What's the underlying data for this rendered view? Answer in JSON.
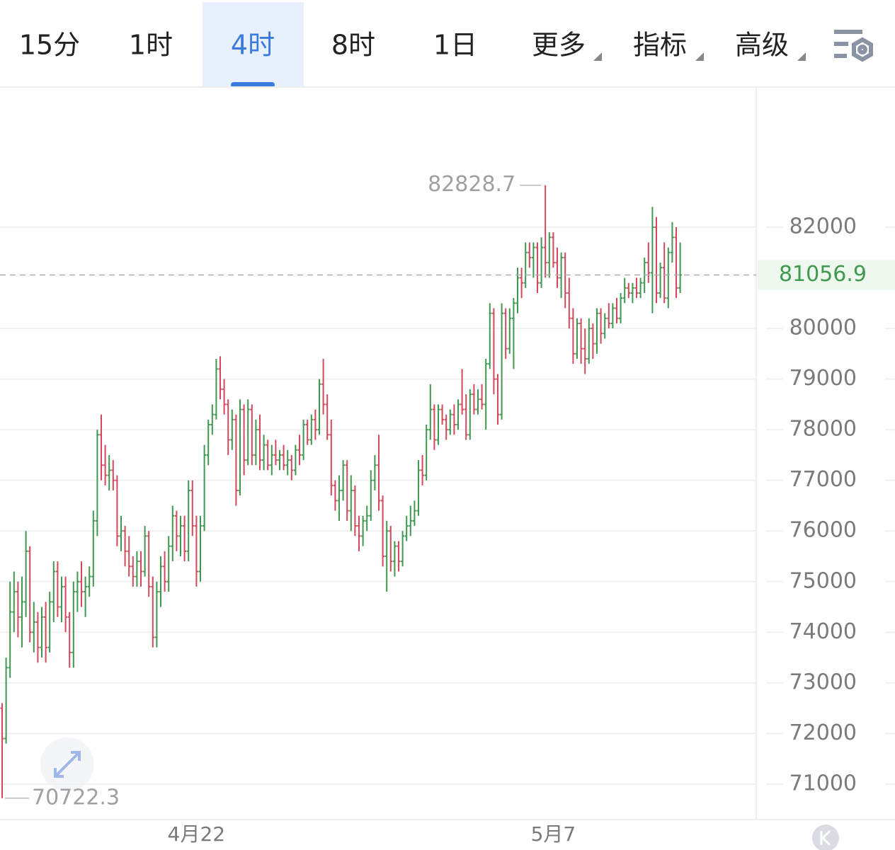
{
  "toolbar": {
    "tabs": [
      "15分",
      "1时",
      "4时",
      "8时",
      "1日",
      "更多",
      "指标",
      "高级"
    ],
    "active": 2
  },
  "chart_data": {
    "type": "ohlc",
    "categories": [
      null,
      null,
      null,
      null,
      null,
      null,
      null,
      null,
      null,
      null,
      null,
      null,
      null,
      null,
      null,
      null,
      null,
      null,
      null,
      null,
      null,
      null,
      null,
      null,
      null,
      null,
      null,
      null,
      null,
      null,
      null,
      null,
      null,
      null,
      null,
      null,
      null,
      null,
      null,
      null,
      null,
      null,
      null,
      null,
      null,
      null,
      null,
      null,
      null,
      "4月22",
      null,
      null,
      null,
      null,
      null,
      null,
      null,
      null,
      null,
      null,
      null,
      null,
      null,
      null,
      null,
      null,
      null,
      null,
      null,
      null,
      null,
      null,
      null,
      null,
      null,
      null,
      null,
      null,
      null,
      null,
      null,
      null,
      null,
      null,
      null,
      null,
      null,
      null,
      null,
      null,
      null,
      null,
      null,
      null,
      null,
      null,
      null,
      null,
      null,
      null,
      null,
      null,
      null,
      null,
      null,
      null,
      null,
      null,
      null,
      null,
      null,
      null,
      null,
      null,
      null,
      null,
      null,
      null,
      null,
      null,
      null,
      null,
      null,
      null,
      null,
      null,
      null,
      null,
      null,
      null,
      null,
      null,
      null,
      null,
      null,
      null,
      null,
      null,
      null,
      "5月7",
      null,
      null,
      null,
      null,
      null,
      null,
      null,
      null,
      null,
      null,
      null,
      null,
      null,
      null,
      null,
      null,
      null,
      null,
      null,
      null,
      null,
      null,
      null,
      null,
      null,
      null,
      null,
      null,
      null,
      null,
      null,
      null
    ],
    "ohlc": [
      [
        72500,
        72600,
        70722.3,
        71900
      ],
      [
        71900,
        73500,
        71800,
        73300
      ],
      [
        73300,
        75000,
        73100,
        74400
      ],
      [
        74400,
        75200,
        74000,
        74800
      ],
      [
        74800,
        75000,
        73900,
        74300
      ],
      [
        74300,
        75100,
        73700,
        74600
      ],
      [
        74600,
        76000,
        74300,
        75600
      ],
      [
        75600,
        75700,
        73800,
        74000
      ],
      [
        74000,
        74600,
        73600,
        74200
      ],
      [
        74200,
        74400,
        73400,
        73700
      ],
      [
        73700,
        74500,
        73500,
        74300
      ],
      [
        74300,
        74600,
        73400,
        73700
      ],
      [
        73700,
        74800,
        73600,
        74600
      ],
      [
        74600,
        75400,
        74200,
        75200
      ],
      [
        75200,
        75400,
        74300,
        74500
      ],
      [
        74500,
        75100,
        74200,
        74900
      ],
      [
        74900,
        75100,
        74000,
        74300
      ],
      [
        74300,
        74400,
        73300,
        73600
      ],
      [
        73600,
        75000,
        73300,
        74800
      ],
      [
        74800,
        75200,
        74400,
        75000
      ],
      [
        75000,
        75400,
        74500,
        74800
      ],
      [
        74800,
        75100,
        74300,
        74900
      ],
      [
        74900,
        75300,
        74700,
        75100
      ],
      [
        75100,
        76400,
        74900,
        76200
      ],
      [
        76200,
        78000,
        75900,
        77900
      ],
      [
        77900,
        78300,
        77000,
        77300
      ],
      [
        77300,
        77700,
        76900,
        77100
      ],
      [
        77100,
        77500,
        76800,
        77200
      ],
      [
        77200,
        77400,
        76800,
        77000
      ],
      [
        77000,
        77100,
        75700,
        75900
      ],
      [
        75900,
        76300,
        75600,
        76000
      ],
      [
        76000,
        76100,
        75300,
        75600
      ],
      [
        75600,
        75900,
        75100,
        75300
      ],
      [
        75300,
        75500,
        74900,
        75100
      ],
      [
        75100,
        75600,
        74900,
        75400
      ],
      [
        75400,
        75600,
        74900,
        75200
      ],
      [
        75200,
        76100,
        75100,
        75900
      ],
      [
        75900,
        76000,
        74700,
        74900
      ],
      [
        74900,
        75100,
        73700,
        73900
      ],
      [
        73900,
        75000,
        73700,
        74800
      ],
      [
        74800,
        75500,
        74500,
        75300
      ],
      [
        75300,
        75600,
        74800,
        75000
      ],
      [
        75000,
        75900,
        74800,
        75700
      ],
      [
        75700,
        76500,
        75400,
        76300
      ],
      [
        76300,
        76400,
        75600,
        75900
      ],
      [
        75900,
        76300,
        75500,
        76100
      ],
      [
        76100,
        76300,
        75400,
        75600
      ],
      [
        75600,
        77000,
        75400,
        76800
      ],
      [
        76800,
        77000,
        75900,
        76100
      ],
      [
        76100,
        76300,
        74900,
        75200
      ],
      [
        75200,
        76300,
        75000,
        76100
      ],
      [
        76100,
        77700,
        76000,
        77500
      ],
      [
        77500,
        78200,
        77300,
        78100
      ],
      [
        78100,
        78500,
        77900,
        78300
      ],
      [
        78300,
        79400,
        78200,
        79200
      ],
      [
        79200,
        79450,
        78600,
        78800
      ],
      [
        78800,
        79000,
        78300,
        78500
      ],
      [
        78500,
        78600,
        77500,
        77800
      ],
      [
        77800,
        78400,
        77600,
        78200
      ],
      [
        78200,
        78300,
        76500,
        76800
      ],
      [
        76800,
        78600,
        76700,
        78400
      ],
      [
        78400,
        78500,
        77100,
        77400
      ],
      [
        77400,
        78600,
        77300,
        78400
      ],
      [
        78400,
        78500,
        77300,
        77500
      ],
      [
        77500,
        78200,
        77300,
        78000
      ],
      [
        78000,
        78300,
        77200,
        77400
      ],
      [
        77400,
        77900,
        77200,
        77700
      ],
      [
        77700,
        77800,
        77200,
        77300
      ],
      [
        77300,
        77700,
        77100,
        77500
      ],
      [
        77500,
        77800,
        77300,
        77400
      ],
      [
        77400,
        77600,
        77200,
        77500
      ],
      [
        77500,
        77700,
        77200,
        77300
      ],
      [
        77300,
        77600,
        77100,
        77400
      ],
      [
        77400,
        77500,
        77000,
        77200
      ],
      [
        77200,
        77700,
        77100,
        77600
      ],
      [
        77600,
        77900,
        77300,
        77500
      ],
      [
        77500,
        78200,
        77400,
        78100
      ],
      [
        78100,
        78200,
        77700,
        77800
      ],
      [
        77800,
        78300,
        77700,
        78200
      ],
      [
        78200,
        78400,
        77800,
        78000
      ],
      [
        78000,
        79000,
        77900,
        78900
      ],
      [
        78900,
        79400,
        78300,
        78500
      ],
      [
        78500,
        78700,
        77800,
        77900
      ],
      [
        77900,
        78200,
        76700,
        76900
      ],
      [
        76900,
        77000,
        76400,
        76600
      ],
      [
        76600,
        77100,
        76200,
        76800
      ],
      [
        76800,
        77400,
        76600,
        77300
      ],
      [
        77300,
        77400,
        76200,
        76400
      ],
      [
        76400,
        77100,
        76000,
        76800
      ],
      [
        76800,
        76900,
        75900,
        76100
      ],
      [
        76100,
        76300,
        75600,
        75900
      ],
      [
        75900,
        76300,
        75700,
        76200
      ],
      [
        76200,
        76500,
        76000,
        76300
      ],
      [
        76300,
        77200,
        76200,
        77000
      ],
      [
        77000,
        77500,
        76800,
        77300
      ],
      [
        77300,
        77900,
        76400,
        76600
      ],
      [
        76600,
        76700,
        75300,
        75500
      ],
      [
        75500,
        76200,
        74800,
        76000
      ],
      [
        76000,
        76100,
        75200,
        75400
      ],
      [
        75400,
        75800,
        75100,
        75700
      ],
      [
        75700,
        75800,
        75200,
        75400
      ],
      [
        75400,
        76000,
        75300,
        75900
      ],
      [
        75900,
        76300,
        75800,
        76100
      ],
      [
        76100,
        76500,
        75900,
        76200
      ],
      [
        76200,
        76600,
        76100,
        76400
      ],
      [
        76400,
        77400,
        76300,
        77200
      ],
      [
        77200,
        77500,
        76900,
        77100
      ],
      [
        77100,
        78100,
        77000,
        78000
      ],
      [
        78000,
        78900,
        77800,
        78400
      ],
      [
        78400,
        78500,
        77600,
        77800
      ],
      [
        77800,
        78500,
        77700,
        78400
      ],
      [
        78400,
        78500,
        78100,
        78200
      ],
      [
        78200,
        78300,
        77800,
        78000
      ],
      [
        78000,
        78400,
        77900,
        78300
      ],
      [
        78300,
        78500,
        77900,
        78100
      ],
      [
        78100,
        78600,
        78000,
        78500
      ],
      [
        78500,
        79200,
        78300,
        78400
      ],
      [
        78400,
        78700,
        77800,
        77900
      ],
      [
        77900,
        78800,
        77800,
        78700
      ],
      [
        78700,
        78900,
        78300,
        78400
      ],
      [
        78400,
        78800,
        78300,
        78600
      ],
      [
        78600,
        78900,
        78400,
        78500
      ],
      [
        78500,
        79400,
        78000,
        79300
      ],
      [
        79300,
        80500,
        79200,
        80300
      ],
      [
        80300,
        80400,
        78700,
        79000
      ],
      [
        79000,
        79100,
        78100,
        78300
      ],
      [
        78300,
        80500,
        78200,
        80300
      ],
      [
        80300,
        80400,
        79400,
        79600
      ],
      [
        79600,
        80400,
        79500,
        80200
      ],
      [
        80200,
        80600,
        79200,
        80500
      ],
      [
        80500,
        81200,
        80300,
        81000
      ],
      [
        81000,
        81200,
        80600,
        80900
      ],
      [
        80900,
        81700,
        80800,
        81500
      ],
      [
        81500,
        81700,
        81200,
        81400
      ],
      [
        81400,
        81700,
        81000,
        81600
      ],
      [
        81600,
        81700,
        80700,
        80900
      ],
      [
        80900,
        81800,
        80800,
        81600
      ],
      [
        81600,
        82828.7,
        81000,
        81300
      ],
      [
        81300,
        81900,
        81000,
        81800
      ],
      [
        81800,
        81900,
        81200,
        81300
      ],
      [
        81300,
        81600,
        80800,
        81000
      ],
      [
        81000,
        81500,
        80600,
        81400
      ],
      [
        81400,
        81500,
        80400,
        80700
      ],
      [
        80700,
        81000,
        80000,
        80200
      ],
      [
        80200,
        80400,
        79300,
        79500
      ],
      [
        79500,
        80200,
        79400,
        80100
      ],
      [
        80100,
        80200,
        79300,
        79600
      ],
      [
        79600,
        80000,
        79100,
        79400
      ],
      [
        79400,
        80200,
        79300,
        80000
      ],
      [
        80000,
        80100,
        79400,
        79700
      ],
      [
        79700,
        80400,
        79500,
        80300
      ],
      [
        80300,
        80400,
        79700,
        79900
      ],
      [
        79900,
        80300,
        79800,
        80200
      ],
      [
        80200,
        80500,
        80000,
        80100
      ],
      [
        80100,
        80500,
        80000,
        80400
      ],
      [
        80400,
        80600,
        80100,
        80200
      ],
      [
        80200,
        80700,
        80100,
        80600
      ],
      [
        80600,
        81000,
        80500,
        80800
      ],
      [
        80800,
        80900,
        80600,
        80700
      ],
      [
        80700,
        80900,
        80500,
        80800
      ],
      [
        80800,
        81000,
        80600,
        80700
      ],
      [
        80700,
        81000,
        80600,
        80900
      ],
      [
        80900,
        81400,
        80700,
        81300
      ],
      [
        81300,
        81700,
        80900,
        81100
      ],
      [
        81100,
        82400,
        80300,
        82000
      ],
      [
        82000,
        82200,
        80500,
        80700
      ],
      [
        80700,
        81300,
        80600,
        81200
      ],
      [
        81200,
        81700,
        80500,
        80600
      ],
      [
        80600,
        81600,
        80400,
        81500
      ],
      [
        81500,
        82100,
        81300,
        81800
      ],
      [
        81800,
        82000,
        80600,
        80800
      ],
      [
        80800,
        81700,
        80700,
        81056.9
      ]
    ],
    "up_color": "#3f9a50",
    "down_color": "#d24a5c",
    "ylim": [
      70300,
      84740
    ],
    "yticks": [
      71000,
      72000,
      73000,
      74000,
      75000,
      76000,
      77000,
      78000,
      79000,
      80000,
      82000
    ],
    "grid": true
  }
}
